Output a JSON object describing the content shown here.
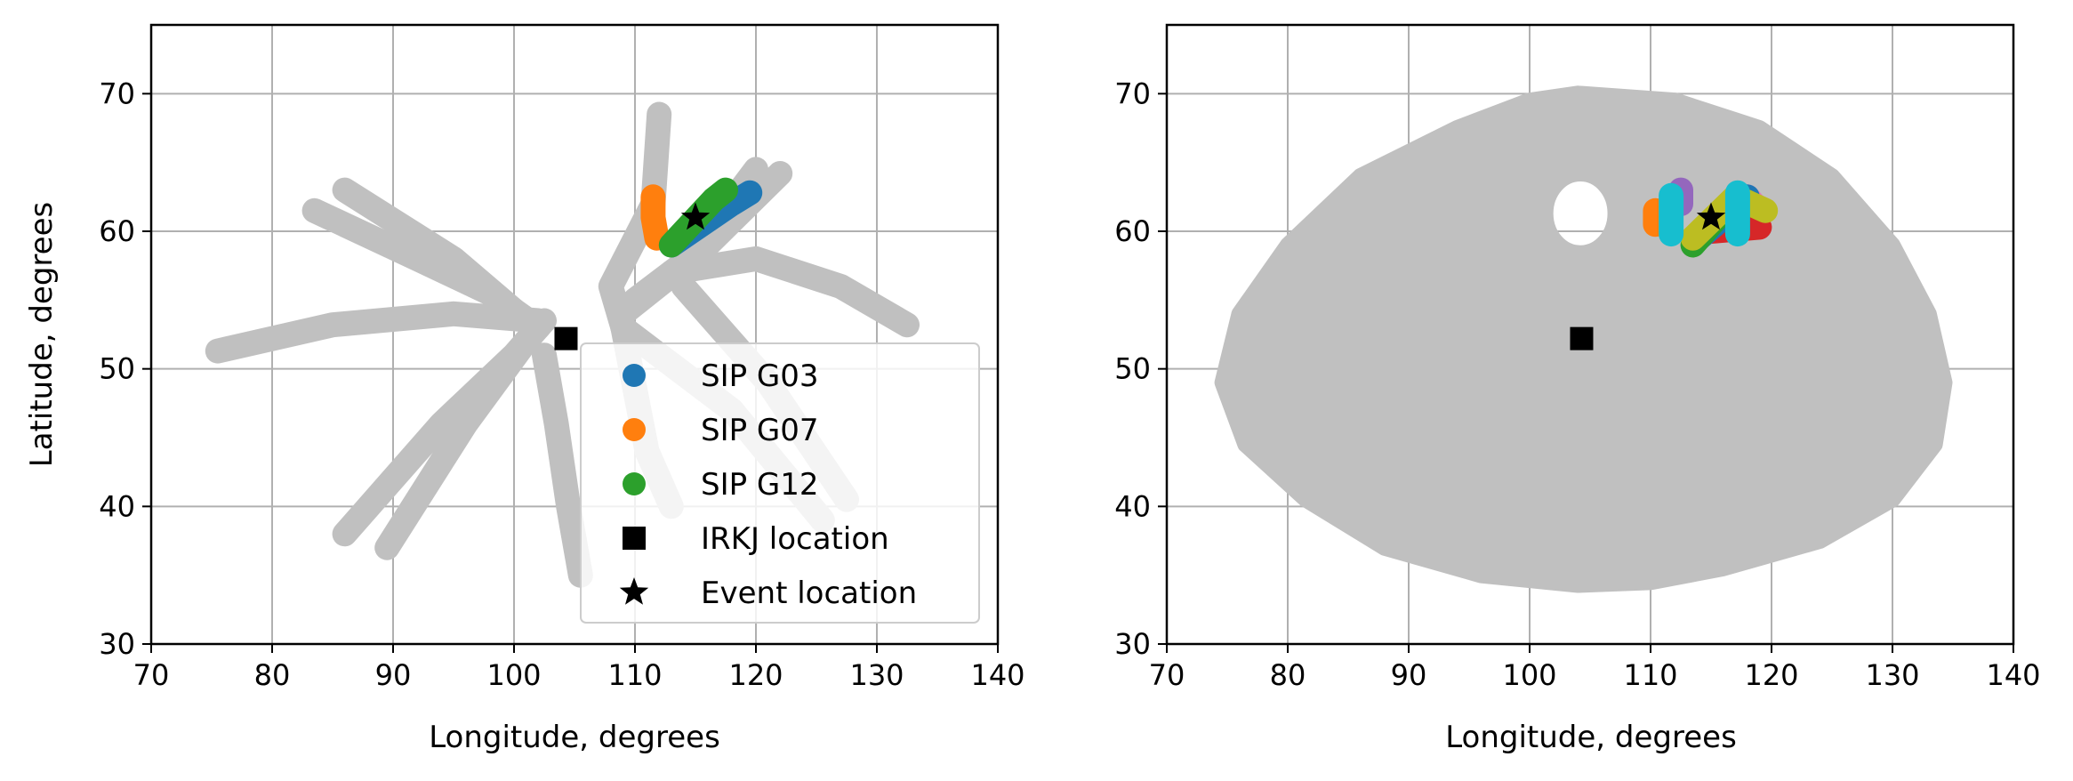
{
  "chart_data": [
    {
      "type": "scatter",
      "xlabel": "Longitude, degrees",
      "ylabel": "Latitude, degrees",
      "xlim": [
        70,
        140
      ],
      "ylim": [
        30,
        75
      ],
      "xticks": [
        "70",
        "80",
        "90",
        "100",
        "110",
        "120",
        "130",
        "140"
      ],
      "yticks": [
        "30",
        "40",
        "50",
        "60",
        "70"
      ],
      "grid": true,
      "legend_position": "lower-right",
      "background_tracks": {
        "color": "#c0c0c0",
        "tracks": [
          [
            [
              75.5,
              51.3
            ],
            [
              85,
              53.2
            ],
            [
              95,
              54
            ],
            [
              102,
              53.5
            ]
          ],
          [
            [
              83.5,
              61.5
            ],
            [
              92,
              58
            ],
            [
              98,
              55.5
            ],
            [
              102,
              53
            ]
          ],
          [
            [
              86,
              63
            ],
            [
              95,
              58
            ],
            [
              101,
              53.5
            ]
          ],
          [
            [
              86,
              38
            ],
            [
              94,
              46
            ],
            [
              100,
              51
            ],
            [
              102.5,
              53.5
            ]
          ],
          [
            [
              89.5,
              37
            ],
            [
              96,
              46
            ],
            [
              101,
              52
            ]
          ],
          [
            [
              102.5,
              51
            ],
            [
              103.5,
              46
            ],
            [
              104.5,
              40
            ],
            [
              105.5,
              35
            ]
          ],
          [
            [
              112,
              68.5
            ],
            [
              111.5,
              62
            ],
            [
              108,
              56
            ],
            [
              109,
              53
            ],
            [
              118,
              47
            ],
            [
              125.5,
              39
            ]
          ],
          [
            [
              109,
              53
            ],
            [
              111,
              44
            ],
            [
              113,
              40
            ]
          ],
          [
            [
              109,
              54
            ],
            [
              114,
              57.5
            ],
            [
              120,
              64.5
            ]
          ],
          [
            [
              110,
              55
            ],
            [
              116,
              59
            ],
            [
              122,
              64.2
            ]
          ],
          [
            [
              113,
              57
            ],
            [
              120,
              58
            ],
            [
              127,
              56
            ],
            [
              132.5,
              53.2
            ]
          ],
          [
            [
              114,
              56
            ],
            [
              121,
              49
            ],
            [
              127.5,
              40.5
            ]
          ]
        ]
      },
      "series": [
        {
          "name": "SIP G03",
          "color": "#1f77b4",
          "points": [
            [
              113,
              59
            ],
            [
              115.5,
              60.5
            ],
            [
              118,
              62
            ],
            [
              119.5,
              62.8
            ]
          ]
        },
        {
          "name": "SIP G07",
          "color": "#ff7f0e",
          "points": [
            [
              111.5,
              62.5
            ],
            [
              111.5,
              61
            ],
            [
              111.8,
              59.5
            ]
          ]
        },
        {
          "name": "SIP G12",
          "color": "#2ca02c",
          "points": [
            [
              113,
              59
            ],
            [
              114.8,
              60.7
            ],
            [
              116.5,
              62.3
            ],
            [
              117.5,
              63
            ]
          ]
        },
        {
          "name": "IRKJ location",
          "color": "#000000",
          "marker": "square",
          "points": [
            [
              104.3,
              52.2
            ]
          ]
        },
        {
          "name": "Event location",
          "color": "#000000",
          "marker": "star",
          "points": [
            [
              115,
              61
            ]
          ]
        }
      ]
    },
    {
      "type": "scatter",
      "xlabel": "Longitude, degrees",
      "ylabel": "",
      "xlim": [
        70,
        140
      ],
      "ylim": [
        30,
        75
      ],
      "xticks": [
        "70",
        "80",
        "90",
        "100",
        "110",
        "120",
        "130",
        "140"
      ],
      "yticks": [
        "30",
        "40",
        "50",
        "60",
        "70"
      ],
      "grid": true,
      "background_region": {
        "color": "#c0c0c0",
        "outline": [
          [
            104,
            70
          ],
          [
            112,
            69.5
          ],
          [
            119,
            67.5
          ],
          [
            125,
            64
          ],
          [
            130,
            59
          ],
          [
            133,
            54
          ],
          [
            134.3,
            49
          ],
          [
            133.5,
            44.5
          ],
          [
            130,
            40.5
          ],
          [
            124,
            37.5
          ],
          [
            116,
            35.5
          ],
          [
            110,
            34.5
          ],
          [
            104,
            34.3
          ],
          [
            96,
            35
          ],
          [
            88,
            37
          ],
          [
            81.5,
            40.5
          ],
          [
            76.5,
            44.5
          ],
          [
            74.6,
            49
          ],
          [
            76,
            54
          ],
          [
            80,
            59
          ],
          [
            86,
            64
          ],
          [
            94,
            67.5
          ],
          [
            100,
            69.5
          ]
        ],
        "hole_center": [
          104.2,
          61.3
        ],
        "hole_radius": [
          2.9,
          2.9
        ]
      },
      "series": [
        {
          "color": "#9467bd",
          "points": [
            [
              112.5,
              62
            ],
            [
              112.5,
              63
            ]
          ]
        },
        {
          "color": "#e377c2",
          "points": [
            [
              118,
              62.5
            ],
            [
              119,
              61.5
            ]
          ]
        },
        {
          "color": "#d62728",
          "points": [
            [
              115,
              60
            ],
            [
              119,
              60.3
            ]
          ]
        },
        {
          "color": "#ff7f0e",
          "points": [
            [
              110.4,
              61.5
            ],
            [
              110.4,
              60.5
            ]
          ]
        },
        {
          "color": "#1f77b4",
          "points": [
            [
              114,
              59.5
            ],
            [
              118,
              62.5
            ]
          ]
        },
        {
          "color": "#2ca02c",
          "points": [
            [
              113.5,
              59
            ],
            [
              116,
              61.5
            ]
          ]
        },
        {
          "color": "#bcbd22",
          "points": [
            [
              113.5,
              59.5
            ],
            [
              117,
              62.5
            ],
            [
              119.5,
              61.5
            ]
          ]
        },
        {
          "color": "#17becf",
          "points": [
            [
              111.7,
              62.6
            ],
            [
              111.7,
              59.8
            ]
          ]
        },
        {
          "color": "#17becf",
          "points": [
            [
              117.2,
              62.8
            ],
            [
              117.2,
              59.8
            ]
          ]
        },
        {
          "color": "#000000",
          "marker": "square",
          "points": [
            [
              104.3,
              52.2
            ]
          ]
        },
        {
          "color": "#000000",
          "marker": "star",
          "points": [
            [
              115,
              61
            ]
          ]
        }
      ]
    }
  ]
}
